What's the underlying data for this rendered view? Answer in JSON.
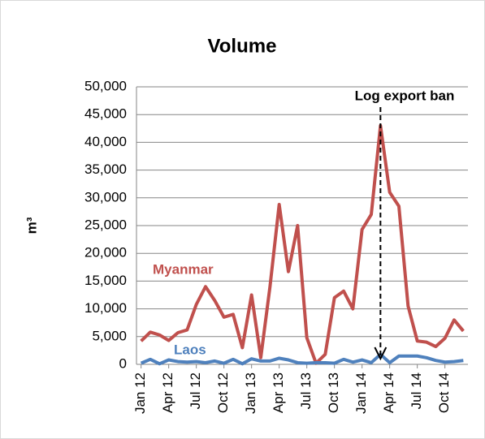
{
  "chart_data": {
    "type": "line",
    "title": "Volume",
    "ylabel": "m³",
    "categories": [
      "Jan 12",
      null,
      null,
      "Apr 12",
      null,
      null,
      "Jul 12",
      null,
      null,
      "Oct 12",
      null,
      null,
      "Jan 13",
      null,
      null,
      "Apr 13",
      null,
      null,
      "Jul 13",
      null,
      null,
      "Oct 13",
      null,
      null,
      "Jan 14",
      null,
      null,
      "Apr 14",
      null,
      null,
      "Jul 14",
      null,
      null,
      "Oct 14",
      null,
      null
    ],
    "series": [
      {
        "name": "Myanmar",
        "color": "#c0504d",
        "values": [
          4200,
          5800,
          5300,
          4300,
          5700,
          6200,
          10800,
          14000,
          11500,
          8500,
          9000,
          3000,
          12500,
          1200,
          14000,
          28800,
          16700,
          25000,
          4800,
          200,
          1800,
          12000,
          13200,
          10000,
          24300,
          27000,
          43000,
          31000,
          28500,
          10500,
          4200,
          4000,
          3200,
          4700,
          8000,
          6000
        ]
      },
      {
        "name": "Laos",
        "color": "#4f81bd",
        "values": [
          200,
          900,
          100,
          800,
          500,
          400,
          500,
          300,
          600,
          200,
          900,
          100,
          1000,
          600,
          600,
          1100,
          800,
          300,
          200,
          300,
          300,
          200,
          900,
          400,
          800,
          300,
          1800,
          300,
          1500,
          1500,
          1500,
          1200,
          700,
          400,
          500,
          700
        ]
      }
    ],
    "annotation": "Log export ban",
    "ylim": [
      0,
      50000
    ],
    "yticks": [
      0,
      {
        "value": 5000,
        "label": "5,000"
      },
      {
        "value": 10000,
        "label": "10,000"
      },
      {
        "value": 15000,
        "label": "15,000"
      },
      {
        "value": 20000,
        "label": "20,000"
      },
      {
        "value": 25000,
        "label": "25,000"
      },
      {
        "value": 30000,
        "label": "30,000"
      },
      {
        "value": 35000,
        "label": "35,000"
      },
      {
        "value": 40000,
        "label": "40,000"
      },
      {
        "value": 45000,
        "label": "45,000"
      },
      {
        "value": 50000,
        "label": "50,000"
      }
    ],
    "grid": true
  }
}
